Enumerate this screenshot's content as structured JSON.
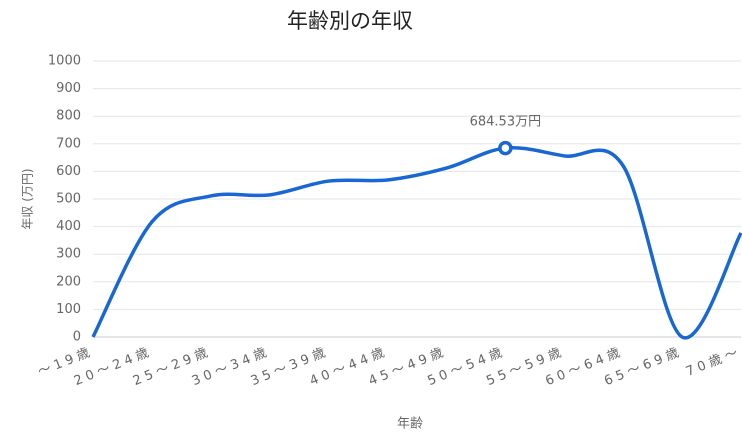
{
  "chart_data": {
    "type": "line",
    "title": "年齢別の年収",
    "x_label": "年齢",
    "y_label": "年収 (万円)",
    "categories": [
      "～19歳",
      "20～24歳",
      "25～29歳",
      "30～34歳",
      "35～39歳",
      "40～44歳",
      "45～49歳",
      "50～54歳",
      "55～59歳",
      "60～64歳",
      "65～69歳",
      "70歳～"
    ],
    "series": [
      {
        "name": "年収",
        "color": "#1967d2",
        "values": [
          0,
          417,
          511,
          515,
          565,
          569,
          612,
          684.53,
          656,
          620,
          0,
          377
        ],
        "value_labels": [
          null,
          null,
          null,
          null,
          null,
          null,
          null,
          "684.53万円",
          null,
          null,
          null,
          null
        ]
      }
    ],
    "ylim": [
      0,
      1000
    ],
    "yticks": [
      0,
      100,
      200,
      300,
      400,
      500,
      600,
      700,
      800,
      900,
      1000
    ],
    "grid": true
  }
}
